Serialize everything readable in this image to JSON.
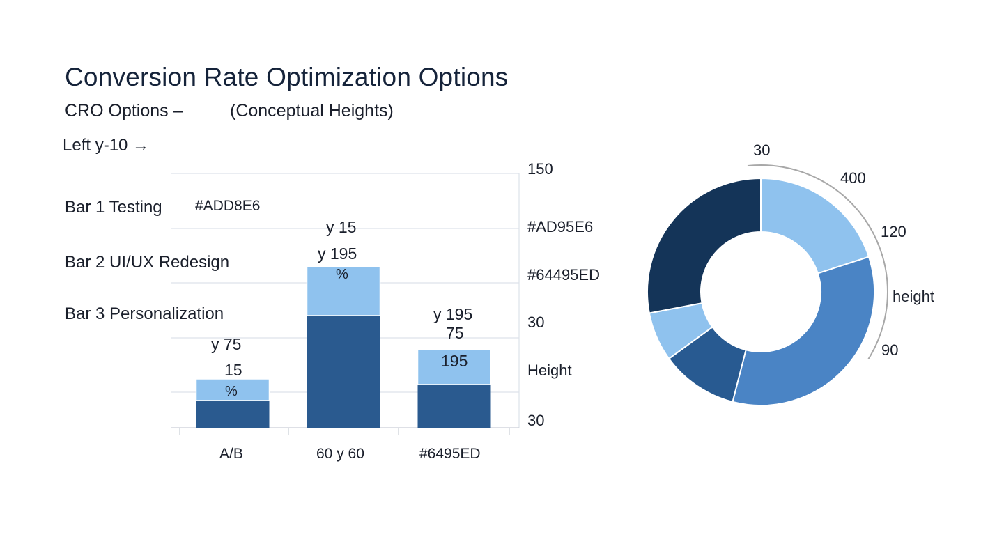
{
  "title": "Conversion Rate Optimization Options",
  "subtitle_left": "CRO Options –",
  "subtitle_right": "(Conceptual Heights)",
  "note": "Left y-10 →",
  "side_labels": [
    "Bar 1 Testing",
    "Bar 2 UI/UX Redesign",
    "Bar 3 Personalization"
  ],
  "swatch_label": "#ADD8E6",
  "right_axis_labels": [
    "150",
    "#AD95E6",
    "#64495ED",
    "30",
    "Height",
    "30"
  ],
  "annotations": {
    "bar1": [
      "y 75",
      "15",
      "%"
    ],
    "bar2": [
      "y 15",
      "y 195",
      "%"
    ],
    "bar3": [
      "y 195",
      "75",
      "195"
    ]
  },
  "colors": {
    "dark_blue": "#2a5a8f",
    "light_blue": "#8fc2ee",
    "pie_navy": "#143458",
    "pie_mid": "#4a84c5",
    "pie_dark": "#285a91",
    "grid": "#dde2ea",
    "arc": "#a8a8a8"
  },
  "chart_data": [
    {
      "type": "bar",
      "categories": [
        "A/B",
        "60 y 60",
        "#6495ED"
      ],
      "series": [
        {
          "values": [
            39,
            161,
            62
          ]
        },
        {
          "values": [
            31,
            70,
            50
          ]
        }
      ]
    },
    {
      "type": "pie",
      "labels": [
        "30",
        "400",
        "120",
        "height",
        "90"
      ],
      "values": [
        20,
        34,
        11,
        7,
        28
      ]
    }
  ]
}
